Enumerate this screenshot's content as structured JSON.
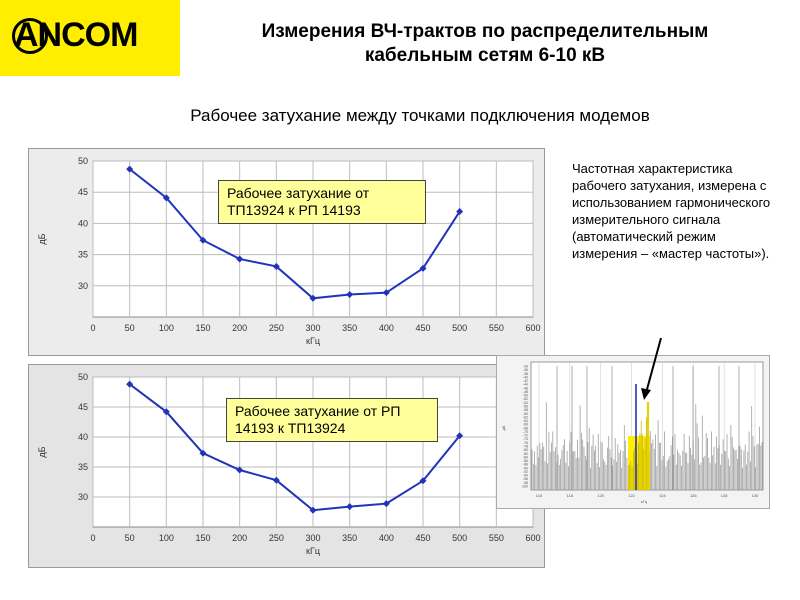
{
  "logo": {
    "text": "ANCOM"
  },
  "header": {
    "title_line1": "Измерения ВЧ-трактов по распределительным",
    "title_line2": "кабельным сетям 6-10 кВ",
    "subtitle": "Рабочее затухание между точками подключения модемов"
  },
  "note_text": "Частотная характеристика рабочего затухания, измерена с использованием гармонического измерительного сигнала (автоматический режим измерения – «мастер частоты»).",
  "colors": {
    "logo_bg": "#ffee00",
    "line": "#2233bb",
    "callout_bg": "#ffff99",
    "spectrum_highlight": "#ffee00"
  },
  "chart_data": [
    {
      "type": "line",
      "annotation": "Рабочее затухание от ТП13924 к РП 14193",
      "xlabel": "кГц",
      "ylabel": "дБ",
      "xlim": [
        0,
        600
      ],
      "ylim": [
        25,
        50
      ],
      "x_ticks": [
        0,
        50,
        100,
        150,
        200,
        250,
        300,
        350,
        400,
        450,
        500,
        550,
        600
      ],
      "y_ticks": [
        30,
        35,
        40,
        45,
        50
      ],
      "grid": true,
      "x": [
        50,
        100,
        150,
        200,
        250,
        300,
        350,
        400,
        450,
        500
      ],
      "y": [
        48.7,
        44.1,
        37.3,
        34.3,
        33.1,
        28.0,
        28.6,
        28.9,
        32.8,
        41.9
      ]
    },
    {
      "type": "line",
      "annotation": "Рабочее затухание от РП 14193 к ТП13924",
      "xlabel": "кГц",
      "ylabel": "дБ",
      "xlim": [
        0,
        600
      ],
      "ylim": [
        25,
        50
      ],
      "x_ticks": [
        0,
        50,
        100,
        150,
        200,
        250,
        300,
        350,
        400,
        450,
        500,
        550,
        600
      ],
      "y_ticks": [
        30,
        35,
        40,
        45,
        50
      ],
      "grid": true,
      "x": [
        50,
        100,
        150,
        200,
        250,
        300,
        350,
        400,
        450,
        500
      ],
      "y": [
        48.8,
        44.2,
        37.3,
        34.5,
        32.8,
        27.8,
        28.4,
        28.9,
        32.7,
        40.2
      ]
    },
    {
      "type": "bar",
      "description_visible": "spectrum thumbnail",
      "xlabel": "кГц",
      "ylabel": "дБ",
      "x_ticks": [
        "116",
        "118",
        "120",
        "122",
        "124",
        "126",
        "128",
        "130"
      ],
      "y_ticks": [
        "-34",
        "-36",
        "-38",
        "-40",
        "-42",
        "-44",
        "-46",
        "-48",
        "-50",
        "-52",
        "-54",
        "-56",
        "-58",
        "-60",
        "-62",
        "-64",
        "-66",
        "-68",
        "-70",
        "-72",
        "-74",
        "-76",
        "-78",
        "-80",
        "-82",
        "-84",
        "-86",
        "-88",
        "-90",
        "-92",
        "-94",
        "-96",
        "-98",
        "-100"
      ],
      "markers": [
        {
          "x": 121.2,
          "label": ""
        },
        {
          "x": 122.0,
          "label": ""
        }
      ]
    }
  ]
}
